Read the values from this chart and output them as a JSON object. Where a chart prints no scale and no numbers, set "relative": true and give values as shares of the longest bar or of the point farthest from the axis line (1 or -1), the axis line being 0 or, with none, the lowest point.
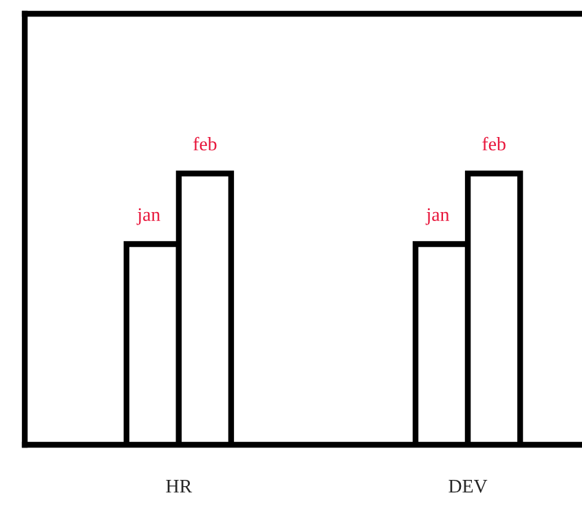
{
  "chart_data": {
    "type": "bar",
    "relative": true,
    "categories": [
      "HR",
      "DEV"
    ],
    "series": [
      {
        "name": "jan",
        "color": "#ffffff",
        "values": [
          0.74,
          0.74
        ]
      },
      {
        "name": "feb",
        "color": "#ffffff",
        "values": [
          1,
          1
        ]
      }
    ],
    "grid": false,
    "legend": false
  }
}
